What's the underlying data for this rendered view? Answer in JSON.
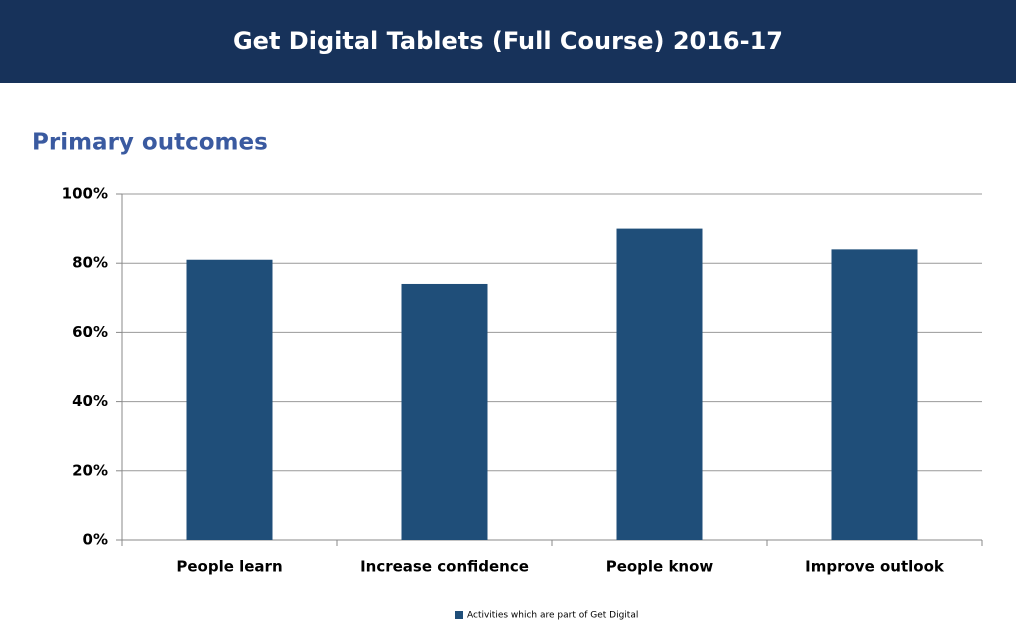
{
  "header": {
    "title": "Get Digital Tablets (Full Course) 2016-17"
  },
  "chart_data": {
    "type": "bar",
    "title": "Primary outcomes",
    "categories": [
      "People learn",
      "Increase confidence",
      "People know",
      "Improve outlook"
    ],
    "series": [
      {
        "name": "Activities which are part of Get Digital",
        "color": "#1f4e79",
        "values": [
          81,
          74,
          90,
          84
        ]
      }
    ],
    "ylim": [
      0,
      100
    ],
    "yticks": [
      {
        "value": 0,
        "label": "0%"
      },
      {
        "value": 20,
        "label": "20%"
      },
      {
        "value": 40,
        "label": "40%"
      },
      {
        "value": 60,
        "label": "60%"
      },
      {
        "value": 80,
        "label": "80%"
      },
      {
        "value": 100,
        "label": "100%"
      }
    ],
    "grid": true,
    "legend": "bottom"
  }
}
